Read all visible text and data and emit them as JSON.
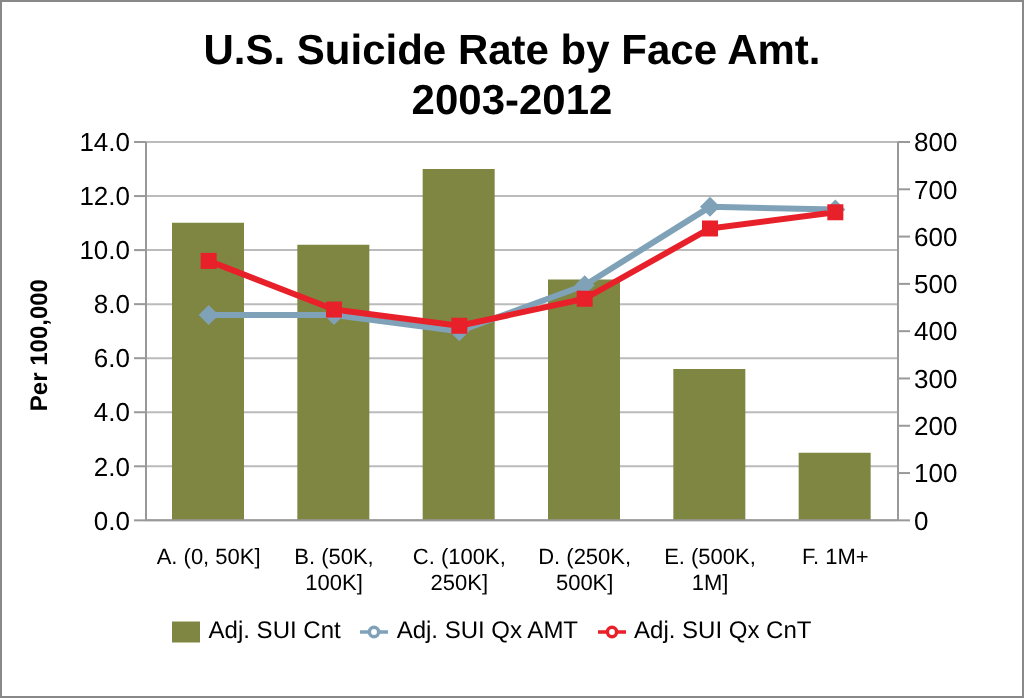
{
  "chart_data": {
    "type": "bar",
    "title": "U.S. Suicide Rate by Face Amt.",
    "subtitle": "2003-2012",
    "ylabel": "Per 100,000",
    "categories": [
      "A. (0, 50K]",
      "B. (50K, 100K]",
      "C. (100K, 250K]",
      "D. (250K, 500K]",
      "E. (500K, 1M]",
      "F. 1M+"
    ],
    "series": [
      {
        "name": "Adj. SUI Cnt",
        "axis": "y2",
        "color": "#7f8641",
        "values": [
          629,
          583,
          743,
          509,
          320,
          143
        ]
      },
      {
        "name": "Adj. SUI Qx AMT",
        "type": "line",
        "marker": "diamond",
        "color": "#7fa2b8",
        "values": [
          7.6,
          7.6,
          7.0,
          8.7,
          11.6,
          11.5
        ]
      },
      {
        "name": "Adj. SUI Qx CnT",
        "type": "line",
        "marker": "square",
        "color": "#e8202a",
        "values": [
          9.6,
          7.8,
          7.2,
          8.2,
          10.8,
          11.4
        ]
      }
    ],
    "ylim": [
      0,
      14
    ],
    "yticks": [
      {
        "value": 0,
        "label": "0.0"
      },
      {
        "value": 2,
        "label": "2.0"
      },
      {
        "value": 4,
        "label": "4.0"
      },
      {
        "value": 6,
        "label": "6.0"
      },
      {
        "value": 8,
        "label": "8.0"
      },
      {
        "value": 10,
        "label": "10.0"
      },
      {
        "value": 12,
        "label": "12.0"
      },
      {
        "value": 14,
        "label": "14.0"
      }
    ],
    "y2lim": [
      0,
      800
    ],
    "y2ticks": [
      0,
      100,
      200,
      300,
      400,
      500,
      600,
      700,
      800
    ],
    "grid": "y",
    "legend": "bottom"
  }
}
